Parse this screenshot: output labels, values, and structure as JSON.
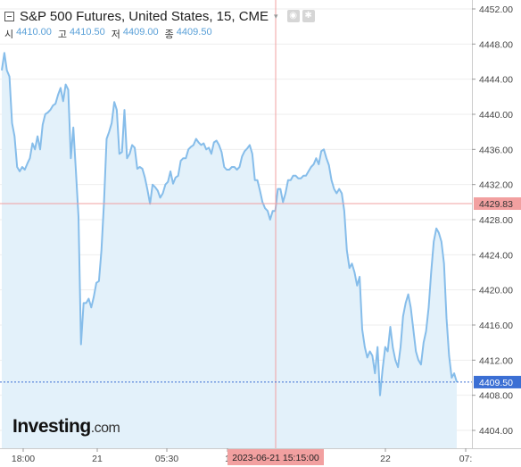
{
  "header": {
    "title": "S&P 500 Futures, United States, 15, CME",
    "ohlc": [
      {
        "label": "시",
        "value": "4410.00"
      },
      {
        "label": "고",
        "value": "4410.50"
      },
      {
        "label": "저",
        "value": "4409.00"
      },
      {
        "label": "종",
        "value": "4409.50"
      }
    ]
  },
  "logo": {
    "brand": "Investing",
    "suffix": ".com"
  },
  "colors": {
    "line": "#86bdea",
    "fill": "#e3f1fa",
    "crosshair": "#f2a0a0",
    "last_price": "#3b6fd4",
    "grid": "#eeeeee"
  },
  "crosshair": {
    "price_label": "4429.83",
    "time_label": "2023-06-21 15:15:00"
  },
  "last_price_label": "4409.50",
  "chart_data": {
    "type": "area",
    "y_ticks": [
      "4452.00",
      "4448.00",
      "4444.00",
      "4440.00",
      "4436.00",
      "4432.00",
      "4428.00",
      "4424.00",
      "4420.00",
      "4416.00",
      "4412.00",
      "4408.00",
      "4404.00"
    ],
    "y_tick_values": [
      4452,
      4448,
      4444,
      4440,
      4436,
      4432,
      4428,
      4424,
      4420,
      4416,
      4412,
      4408,
      4404
    ],
    "x_ticks": [
      "18:00",
      "21",
      "05:30",
      "1",
      "22",
      "07:"
    ],
    "ylim": [
      4402.5,
      4453.5
    ],
    "values": [
      4445,
      4447,
      4445,
      4444.3,
      4439,
      4437.5,
      4434,
      4433.5,
      4434,
      4433.7,
      4434.4,
      4435,
      4436.7,
      4436,
      4437.5,
      4436,
      4438.8,
      4440,
      4440.2,
      4440.5,
      4441,
      4441.2,
      4442.2,
      4443,
      4441.5,
      4443.4,
      4442.8,
      4435,
      4438.5,
      4433.5,
      4428.3,
      4413.8,
      4418.5,
      4418.5,
      4419,
      4418,
      4419.2,
      4420.8,
      4421,
      4424.5,
      4430,
      4437.2,
      4438,
      4439,
      4441.4,
      4440.5,
      4435.5,
      4435.7,
      4440.5,
      4435,
      4435.5,
      4436.5,
      4436.2,
      4433.8,
      4434,
      4433.8,
      4432.8,
      4431.4,
      4429.8,
      4432,
      4431.7,
      4431.3,
      4430.5,
      4431,
      4432,
      4432.3,
      4433.5,
      4432.1,
      4432.8,
      4433,
      4434.7,
      4435,
      4435,
      4436,
      4436.3,
      4436.5,
      4437.2,
      4436.8,
      4436.5,
      4436.7,
      4436,
      4436.2,
      4435.5,
      4436.8,
      4437,
      4436.5,
      4435.7,
      4434,
      4433.7,
      4433.7,
      4434,
      4434,
      4433.7,
      4434,
      4435.2,
      4435.8,
      4436.1,
      4436.5,
      4435.5,
      4432.5,
      4432.5,
      4431.3,
      4430,
      4429.3,
      4429,
      4428,
      4429,
      4429,
      4431.5,
      4431.5,
      4430,
      4431,
      4432.5,
      4432.5,
      4433,
      4433,
      4432.7,
      4432.7,
      4433,
      4433,
      4433.5,
      4434,
      4434.3,
      4435,
      4434.3,
      4435.8,
      4436,
      4435,
      4434.2,
      4432.5,
      4431.5,
      4431,
      4431.5,
      4431,
      4429,
      4424.5,
      4422.5,
      4423,
      4422,
      4420.5,
      4421.5,
      4415.5,
      4413.5,
      4412.3,
      4413,
      4412.5,
      4410.5,
      4413.5,
      4408,
      4411,
      4413.5,
      4413,
      4415.8,
      4413.4,
      4412,
      4411.2,
      4413.5,
      4417,
      4418.5,
      4419.5,
      4418,
      4415.5,
      4413,
      4412,
      4411.5,
      4414,
      4415.3,
      4418,
      4422,
      4425.5,
      4427,
      4426.5,
      4425.5,
      4423,
      4416.8,
      4412.5,
      4410,
      4410.5,
      4409.5
    ]
  }
}
